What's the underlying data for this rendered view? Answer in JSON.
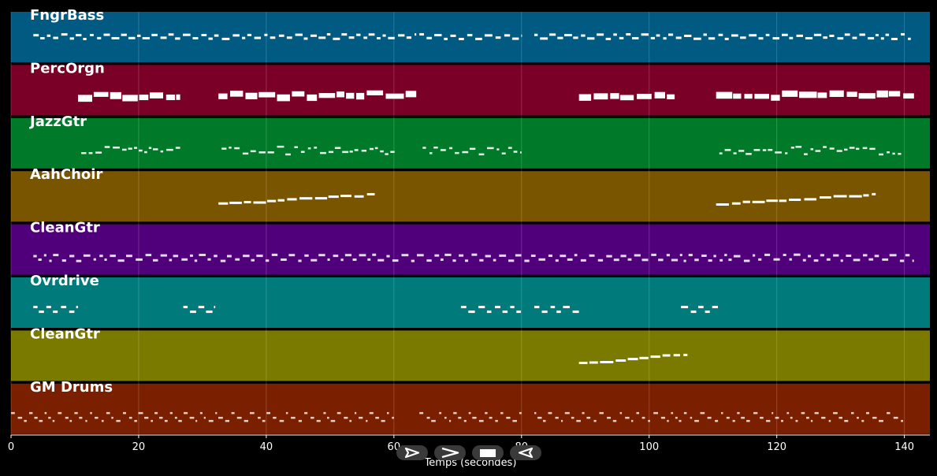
{
  "axis": {
    "xlabel": "Temps (secondes)",
    "xmin": 0,
    "xmax": 144,
    "ticks": [
      "0",
      "20",
      "40",
      "60",
      "80",
      "100",
      "120",
      "140"
    ],
    "tick_values": [
      0,
      20,
      40,
      60,
      80,
      100,
      120,
      140
    ]
  },
  "tracks": [
    {
      "name": "FngrBass",
      "color": "#005a82",
      "segments": [
        [
          3.5,
          63.5
        ],
        [
          64,
          80
        ],
        [
          82,
          141
        ]
      ],
      "style": "bass"
    },
    {
      "name": "PercOrgn",
      "color": "#7a0028",
      "segments": [
        [
          10.5,
          26.5
        ],
        [
          32.5,
          63.5
        ],
        [
          89,
          104
        ],
        [
          110.5,
          141.5
        ]
      ],
      "style": "block"
    },
    {
      "name": "JazzGtr",
      "color": "#007a28",
      "segments": [
        [
          11,
          26.5
        ],
        [
          33,
          60.5
        ],
        [
          64.5,
          80
        ],
        [
          111,
          139.5
        ]
      ],
      "style": "thin"
    },
    {
      "name": "AahChoir",
      "color": "#7a5500",
      "segments": [
        [
          32.5,
          57
        ],
        [
          110.5,
          135.5
        ]
      ],
      "style": "rising"
    },
    {
      "name": "CleanGtr",
      "color": "#50007a",
      "segments": [
        [
          3.5,
          141.5
        ]
      ],
      "style": "dense"
    },
    {
      "name": "Ovrdrive",
      "color": "#007a7a",
      "segments": [
        [
          3.5,
          10.5
        ],
        [
          27,
          32
        ],
        [
          70.5,
          80
        ],
        [
          82,
          89
        ],
        [
          105,
          111
        ]
      ],
      "style": "riff"
    },
    {
      "name": "CleanGtr",
      "color": "#7a7a00",
      "segments": [
        [
          89,
          106
        ]
      ],
      "style": "rising"
    },
    {
      "name": "GM Drums",
      "color": "#7a2000",
      "segments": [
        [
          0,
          60
        ],
        [
          64,
          80
        ],
        [
          82,
          140
        ]
      ],
      "style": "drums"
    }
  ],
  "controls": {
    "step_back": "step-back-icon",
    "play": "play-icon",
    "stop": "stop-icon",
    "step_forward": "step-forward-icon"
  }
}
